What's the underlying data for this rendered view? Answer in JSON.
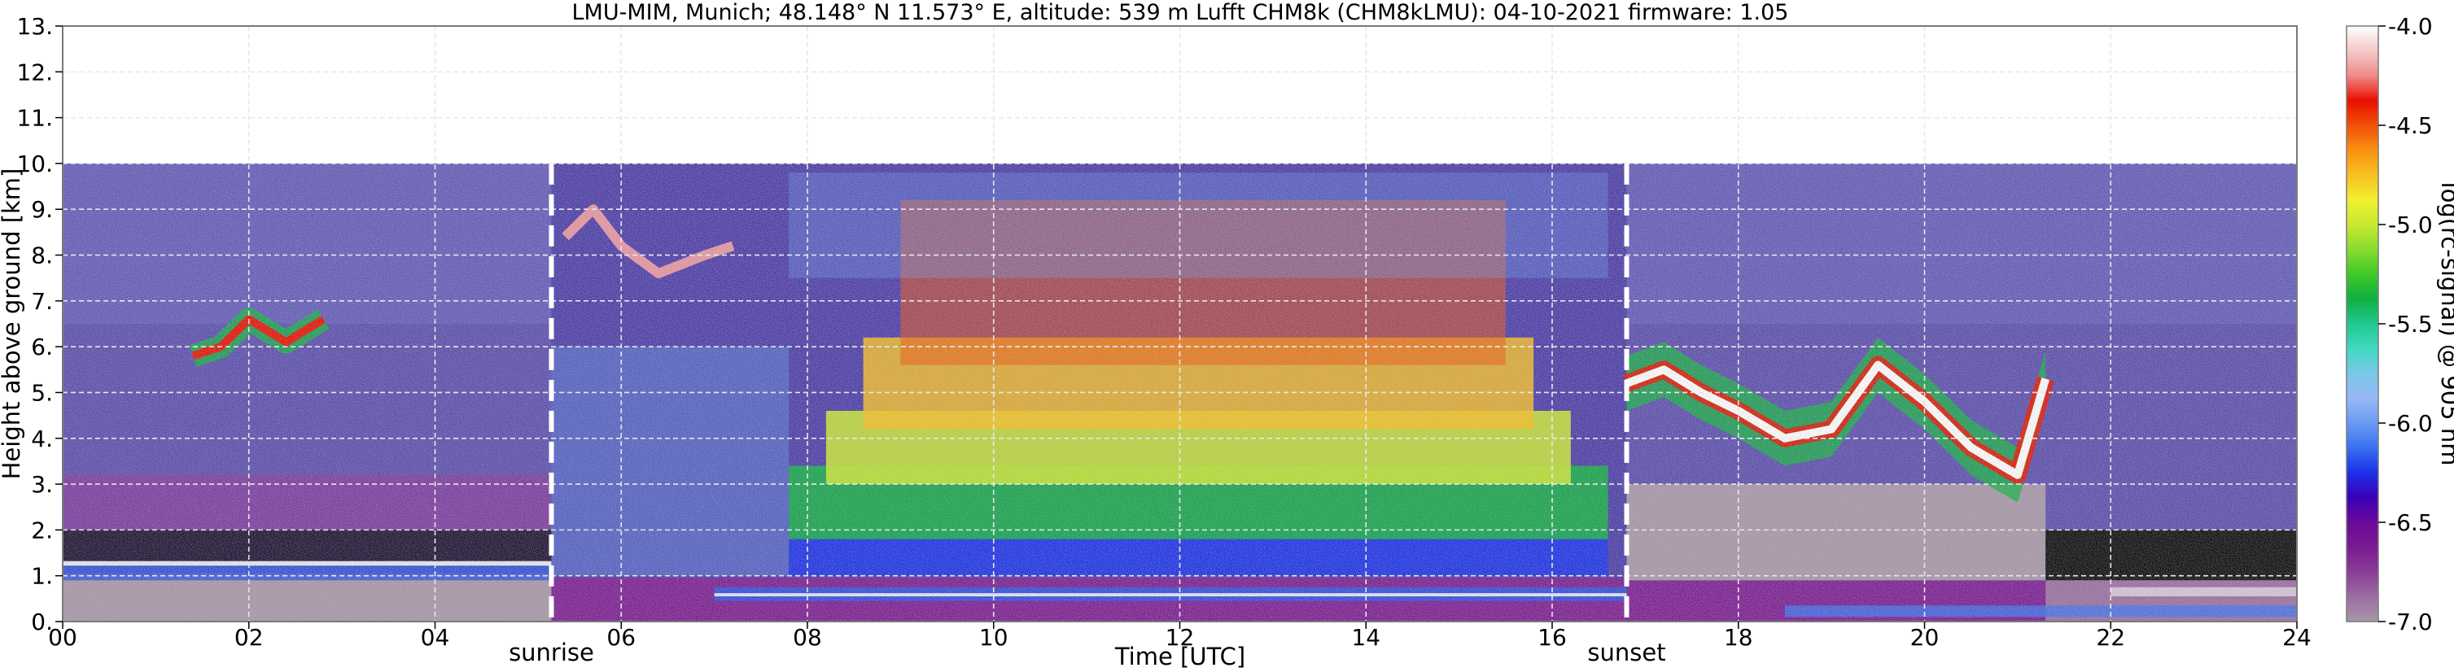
{
  "chart_data": {
    "type": "heatmap",
    "title": "LMU-MIM, Munich; 48.148° N 11.573° E, altitude: 539 m    Lufft CHM8k (CHM8kLMU): 04-10-2021    firmware: 1.05",
    "xlabel": "Time [UTC]",
    "ylabel": "Height above ground [km]",
    "xlim": [
      0,
      24
    ],
    "ylim": [
      0,
      13
    ],
    "x_ticks": [
      0,
      2,
      4,
      6,
      8,
      10,
      12,
      14,
      16,
      18,
      20,
      22,
      24
    ],
    "x_tick_labels": [
      "00",
      "02",
      "04",
      "06",
      "08",
      "10",
      "12",
      "14",
      "16",
      "18",
      "20",
      "22",
      "24"
    ],
    "y_ticks": [
      0,
      1,
      2,
      3,
      4,
      5,
      6,
      7,
      8,
      9,
      10,
      11,
      12,
      13
    ],
    "y_tick_labels": [
      "0.",
      "1.",
      "2.",
      "3.",
      "4.",
      "5.",
      "6.",
      "7.",
      "8.",
      "9.",
      "10.",
      "11.",
      "12.",
      "13."
    ],
    "grid": true,
    "data_top_km": 10,
    "events": [
      {
        "label": "sunrise",
        "time": 5.25
      },
      {
        "label": "sunset",
        "time": 16.8
      }
    ],
    "colorbar": {
      "label": "log(rc-signal) @ 905 nm",
      "range": [
        -7.0,
        -4.0
      ],
      "ticks": [
        -7.0,
        -6.5,
        -6.0,
        -5.5,
        -5.0,
        -4.5,
        -4.0
      ],
      "tick_labels": [
        "-7.0",
        "-6.5",
        "-6.0",
        "-5.5",
        "-5.0",
        "-4.5",
        "-4.0"
      ],
      "colors": [
        "#a896a8",
        "#9a6ea0",
        "#8a3c96",
        "#7a1a92",
        "#6a0a9a",
        "#3a00b8",
        "#1a30e8",
        "#3a70f0",
        "#6a9af4",
        "#98b8f6",
        "#7ac8e8",
        "#40d8c0",
        "#20c890",
        "#10b040",
        "#40c828",
        "#88dc30",
        "#c8e830",
        "#f0f030",
        "#f8c020",
        "#f89010",
        "#f05008",
        "#e81000",
        "#f08a8a",
        "#f4c8c8",
        "#ffffff"
      ]
    }
  }
}
